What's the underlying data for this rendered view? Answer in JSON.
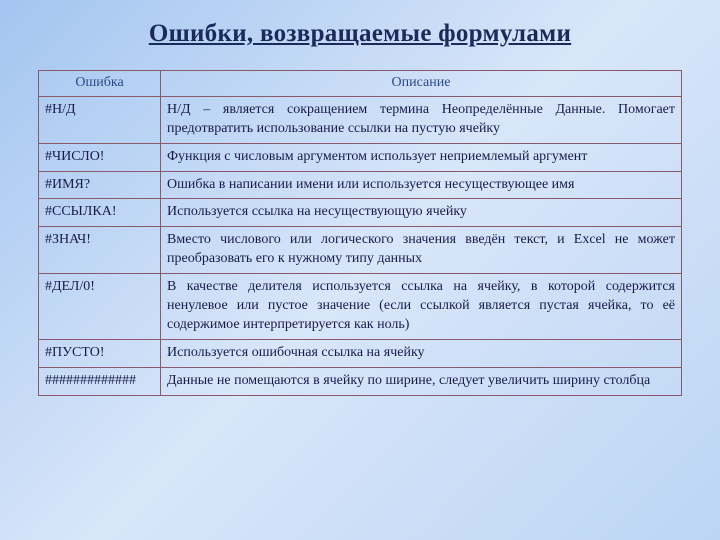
{
  "title": "Ошибки, возвращаемые формулами",
  "table": {
    "headers": {
      "error": "Ошибка",
      "description": "Описание"
    },
    "rows": [
      {
        "error": "#Н/Д",
        "description": "Н/Д – является сокращением термина Неопределённые Данные. Помогает предотвратить использование ссылки на пустую ячейку"
      },
      {
        "error": "#ЧИСЛО!",
        "description": "Функция с числовым аргументом использует неприемлемый аргумент"
      },
      {
        "error": "#ИМЯ?",
        "description": "Ошибка в написании имени или используется несуществующее имя"
      },
      {
        "error": "#ССЫЛКА!",
        "description": "Используется ссылка на несуществующую ячейку"
      },
      {
        "error": "#ЗНАЧ!",
        "description": "Вместо числового или логического значения введён текст, и Excel не может преобразовать его к нужному типу данных"
      },
      {
        "error": "#ДЕЛ/0!",
        "description": "В качестве делителя используется ссылка на ячейку, в которой содержится ненулевое или пустое значение (если ссылкой является пустая ячейка, то её содержимое интерпретируется как ноль)"
      },
      {
        "error": "#ПУСТО!",
        "description": "Используется ошибочная ссылка на ячейку"
      },
      {
        "error": "#############",
        "description": "Данные не помещаются в ячейку по ширине, следует увеличить ширину столбца"
      }
    ]
  },
  "styling": {
    "background_gradient_start": "#a3c5f0",
    "background_gradient_mid": "#d8e6f9",
    "background_gradient_end": "#bcd5f4",
    "title_color": "#1a2a5a",
    "title_fontsize": 25,
    "border_color": "#8a5a6a",
    "header_color": "#2a4a8a",
    "text_color": "#1a1a4a",
    "body_fontsize": 14,
    "error_col_width": 122
  }
}
